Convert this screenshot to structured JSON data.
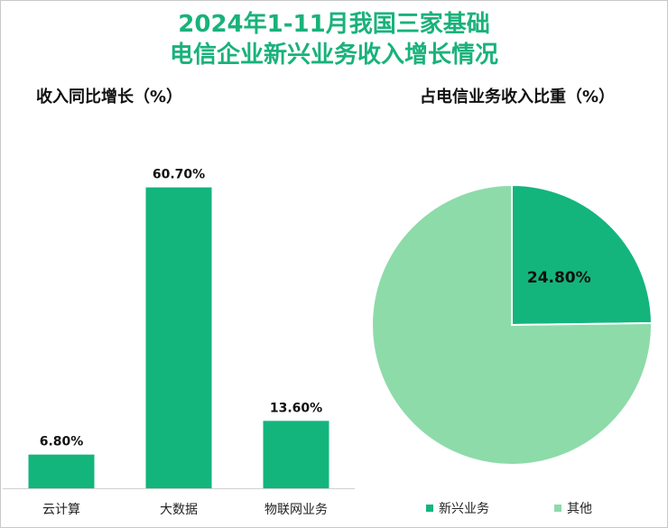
{
  "title": {
    "line1": "2024年1-11月我国三家基础",
    "line2": "电信企业新兴业务收入增长情况"
  },
  "chart_data": [
    {
      "type": "bar",
      "title": "收入同比增长（%）",
      "categories": [
        "云计算",
        "大数据",
        "物联网业务"
      ],
      "values": [
        6.8,
        60.7,
        13.6
      ],
      "value_labels": [
        "6.80%",
        "60.70%",
        "13.60%"
      ],
      "ylim": [
        0,
        65
      ],
      "color": "#13b57d",
      "grid": false
    },
    {
      "type": "pie",
      "title": "占电信业务收入比重（%）",
      "labels": [
        "新兴业务",
        "其他"
      ],
      "values": [
        24.8,
        75.2
      ],
      "value_labels": [
        "24.80%",
        ""
      ],
      "colors": [
        "#13b57d",
        "#8ddba9"
      ],
      "legend": "bottom"
    }
  ]
}
